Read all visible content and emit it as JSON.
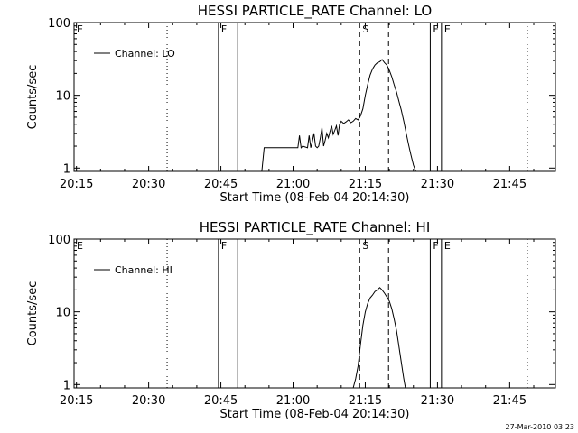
{
  "figure": {
    "timestamp": "27-Mar-2010 03:23"
  },
  "chart_data": [
    {
      "type": "line",
      "title": "HESSI PARTICLE_RATE Channel: LO",
      "xlabel": "Start Time (08-Feb-04 20:14:30)",
      "ylabel": "Counts/sec",
      "yscale": "log",
      "ylim": [
        0.9,
        100
      ],
      "xlim": [
        "20:14:30",
        "21:54:30"
      ],
      "xticks": [
        "20:15",
        "20:30",
        "20:45",
        "21:00",
        "21:15",
        "21:30",
        "21:45"
      ],
      "yticks": [
        "1",
        "10",
        "100"
      ],
      "legend": {
        "entries": [
          "Channel: LO"
        ],
        "placement": "top-left"
      },
      "series": [
        {
          "name": "Channel: LO",
          "x": [
            "20:53:30",
            "20:54:00",
            "20:59:00",
            "21:00:00",
            "21:01:00",
            "21:01:20",
            "21:01:40",
            "21:02:00",
            "21:03:00",
            "21:03:20",
            "21:03:40",
            "21:04:00",
            "21:04:20",
            "21:04:40",
            "21:05:00",
            "21:05:20",
            "21:05:40",
            "21:06:00",
            "21:06:20",
            "21:06:40",
            "21:07:00",
            "21:07:20",
            "21:07:40",
            "21:08:00",
            "21:08:20",
            "21:08:40",
            "21:09:00",
            "21:09:20",
            "21:09:40",
            "21:10:00",
            "21:10:30",
            "21:11:00",
            "21:11:30",
            "21:12:00",
            "21:12:30",
            "21:13:00",
            "21:13:30",
            "21:14:00",
            "21:14:30",
            "21:15:00",
            "21:15:30",
            "21:16:00",
            "21:16:30",
            "21:17:00",
            "21:17:30",
            "21:18:00",
            "21:18:30",
            "21:19:00",
            "21:19:30",
            "21:20:00",
            "21:20:30",
            "21:21:00",
            "21:21:30",
            "21:22:00",
            "21:22:30",
            "21:23:00",
            "21:23:30",
            "21:24:00",
            "21:24:30",
            "21:25:00",
            "21:25:30",
            "21:26:00",
            "21:26:20"
          ],
          "y": [
            0.9,
            1.9,
            1.9,
            1.9,
            1.9,
            2.8,
            1.9,
            2.0,
            1.9,
            2.8,
            1.9,
            2.3,
            3.0,
            2.0,
            1.9,
            2.0,
            2.6,
            3.6,
            2.0,
            2.4,
            3.0,
            2.6,
            3.2,
            3.8,
            2.9,
            3.3,
            3.8,
            2.8,
            4.0,
            4.4,
            4.1,
            4.3,
            4.6,
            4.2,
            4.4,
            4.8,
            4.6,
            5.2,
            6.5,
            10,
            14,
            19,
            23,
            26,
            28,
            29,
            31,
            28,
            26,
            22,
            18,
            14,
            11,
            8.2,
            6.2,
            4.4,
            3.0,
            2.1,
            1.5,
            1.1,
            0.9,
            0.9,
            0.9
          ]
        }
      ],
      "annotations": {
        "solid_lines": [
          "20:44:30",
          "20:48:30",
          "21:28:30",
          "21:30:50"
        ],
        "dashed_lines": [
          "21:13:50",
          "21:19:50"
        ],
        "dotted_lines": [
          "20:33:50",
          "21:48:40"
        ],
        "labels": [
          {
            "text": "E",
            "x": "20:14:30"
          },
          {
            "text": "F",
            "x": "20:44:30"
          },
          {
            "text": "S",
            "x": "21:13:50"
          },
          {
            "text": "F",
            "x": "21:28:30"
          },
          {
            "text": "E",
            "x": "21:30:50"
          }
        ]
      }
    },
    {
      "type": "line",
      "title": "HESSI PARTICLE_RATE Channel: HI",
      "xlabel": "Start Time (08-Feb-04 20:14:30)",
      "ylabel": "Counts/sec",
      "yscale": "log",
      "ylim": [
        0.9,
        100
      ],
      "xlim": [
        "20:14:30",
        "21:54:30"
      ],
      "xticks": [
        "20:15",
        "20:30",
        "20:45",
        "21:00",
        "21:15",
        "21:30",
        "21:45"
      ],
      "yticks": [
        "1",
        "10",
        "100"
      ],
      "legend": {
        "entries": [
          "Channel: HI"
        ],
        "placement": "top-left"
      },
      "series": [
        {
          "name": "Channel: HI",
          "x": [
            "21:12:30",
            "21:13:00",
            "21:13:30",
            "21:14:00",
            "21:14:30",
            "21:15:00",
            "21:15:30",
            "21:16:00",
            "21:16:30",
            "21:17:00",
            "21:17:30",
            "21:18:00",
            "21:18:30",
            "21:19:00",
            "21:19:30",
            "21:20:00",
            "21:20:30",
            "21:21:00",
            "21:21:30",
            "21:22:00",
            "21:22:30",
            "21:23:00",
            "21:23:20"
          ],
          "y": [
            0.9,
            1.2,
            1.8,
            3.5,
            6.5,
            10,
            13,
            15.5,
            17,
            19,
            20,
            21.5,
            20,
            18,
            16,
            14,
            11,
            8,
            5.5,
            3.3,
            2.0,
            1.2,
            0.9
          ]
        }
      ],
      "annotations": {
        "solid_lines": [
          "20:44:30",
          "20:48:30",
          "21:28:30",
          "21:30:50"
        ],
        "dashed_lines": [
          "21:13:50",
          "21:19:50"
        ],
        "dotted_lines": [
          "20:33:50",
          "21:48:40"
        ],
        "labels": [
          {
            "text": "E",
            "x": "20:14:30"
          },
          {
            "text": "F",
            "x": "20:44:30"
          },
          {
            "text": "S",
            "x": "21:13:50"
          },
          {
            "text": "F",
            "x": "21:28:30"
          },
          {
            "text": "E",
            "x": "21:30:50"
          }
        ]
      }
    }
  ]
}
